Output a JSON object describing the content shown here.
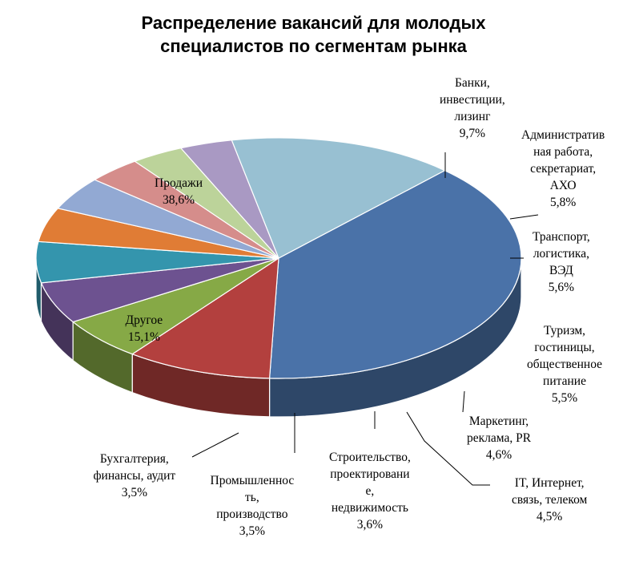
{
  "chart_data": {
    "type": "pie",
    "title_lines": [
      "Распределение вакансий для молодых",
      "специалистов по сегментам рынка"
    ],
    "slices": [
      {
        "label": "Продажи",
        "label_lines": [
          "Продажи"
        ],
        "pct_text": "38,6%",
        "value": 38.6,
        "color": "#4a72a8"
      },
      {
        "label": "Банки, инвестиции, лизинг",
        "label_lines": [
          "Банки,",
          "инвестиции,",
          "лизинг"
        ],
        "pct_text": "9,7%",
        "value": 9.7,
        "color": "#b3403e"
      },
      {
        "label": "Административная работа, секретариат, АХО",
        "label_lines": [
          "Административ",
          "ная работа,",
          "секретариат,",
          "АХО"
        ],
        "pct_text": "5,8%",
        "value": 5.8,
        "color": "#86a946"
      },
      {
        "label": "Транспорт, логистика, ВЭД",
        "label_lines": [
          "Транспорт,",
          "логистика,",
          "ВЭД"
        ],
        "pct_text": "5,6%",
        "value": 5.6,
        "color": "#6d5290"
      },
      {
        "label": "Туризм, гостиницы, общественное питание",
        "label_lines": [
          "Туризм,",
          "гостиницы,",
          "общественное",
          "питание"
        ],
        "pct_text": "5,5%",
        "value": 5.5,
        "color": "#3495ad"
      },
      {
        "label": "Маркетинг, реклама, PR",
        "label_lines": [
          "Маркетинг,",
          "реклама, PR"
        ],
        "pct_text": "4,6%",
        "value": 4.6,
        "color": "#e07c35"
      },
      {
        "label": "IT, Интернет, связь, телеком",
        "label_lines": [
          "IT, Интернет,",
          "связь, телеком"
        ],
        "pct_text": "4,5%",
        "value": 4.5,
        "color": "#92a9d3"
      },
      {
        "label": "Строительство, проектирование, недвижимость",
        "label_lines": [
          "Строительство,",
          "проектировани",
          "е,",
          "недвижимость"
        ],
        "pct_text": "3,6%",
        "value": 3.6,
        "color": "#d58d8b"
      },
      {
        "label": "Промышленность, производство",
        "label_lines": [
          "Промышленнос",
          "ть,",
          "производство"
        ],
        "pct_text": "3,5%",
        "value": 3.5,
        "color": "#bcd39a"
      },
      {
        "label": "Бухгалтерия, финансы, аудит",
        "label_lines": [
          "Бухгалтерия,",
          "финансы, аудит"
        ],
        "pct_text": "3,5%",
        "value": 3.5,
        "color": "#a999c3"
      },
      {
        "label": "Другое",
        "label_lines": [
          "Другое"
        ],
        "pct_text": "15,1%",
        "value": 15.1,
        "color": "#98c0d2"
      }
    ]
  }
}
